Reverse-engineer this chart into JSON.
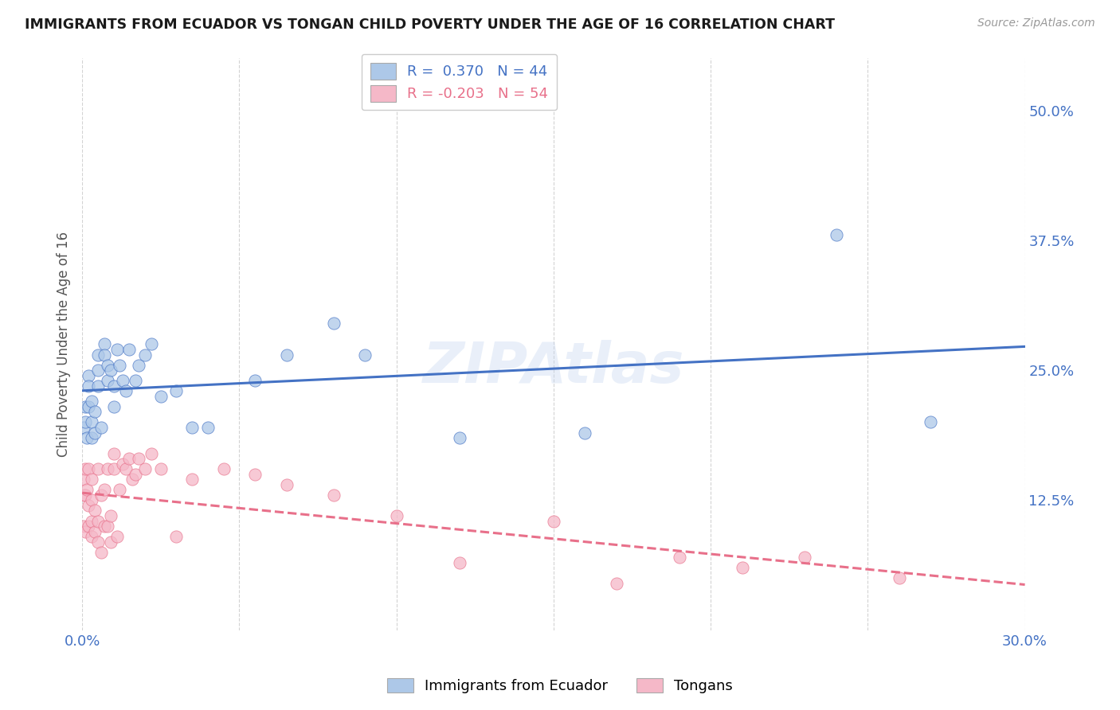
{
  "title": "IMMIGRANTS FROM ECUADOR VS TONGAN CHILD POVERTY UNDER THE AGE OF 16 CORRELATION CHART",
  "source": "Source: ZipAtlas.com",
  "ylabel": "Child Poverty Under the Age of 16",
  "xlim": [
    0.0,
    0.3
  ],
  "ylim": [
    0.0,
    0.55
  ],
  "xticks": [
    0.0,
    0.05,
    0.1,
    0.15,
    0.2,
    0.25,
    0.3
  ],
  "xtick_labels": [
    "0.0%",
    "",
    "",
    "",
    "",
    "",
    "30.0%"
  ],
  "ytick_vals_right": [
    0.5,
    0.375,
    0.25,
    0.125,
    0.0
  ],
  "ytick_labels_right": [
    "50.0%",
    "37.5%",
    "25.0%",
    "12.5%",
    ""
  ],
  "legend_label1": "Immigrants from Ecuador",
  "legend_label2": "Tongans",
  "R1": 0.37,
  "N1": 44,
  "R2": -0.203,
  "N2": 54,
  "color_ecuador": "#adc8e8",
  "color_tonga": "#f5b8c8",
  "color_line_ecuador": "#4472c4",
  "color_line_tonga": "#e8708a",
  "watermark": "ZIPAtlas",
  "background_color": "#ffffff",
  "grid_color": "#c8c8c8",
  "ecuador_x": [
    0.0005,
    0.001,
    0.001,
    0.0015,
    0.002,
    0.002,
    0.002,
    0.003,
    0.003,
    0.003,
    0.004,
    0.004,
    0.005,
    0.005,
    0.005,
    0.006,
    0.007,
    0.007,
    0.008,
    0.008,
    0.009,
    0.01,
    0.01,
    0.011,
    0.012,
    0.013,
    0.014,
    0.015,
    0.017,
    0.018,
    0.02,
    0.022,
    0.025,
    0.03,
    0.035,
    0.04,
    0.055,
    0.065,
    0.08,
    0.09,
    0.12,
    0.16,
    0.24,
    0.27
  ],
  "ecuador_y": [
    0.195,
    0.2,
    0.215,
    0.185,
    0.245,
    0.215,
    0.235,
    0.185,
    0.2,
    0.22,
    0.19,
    0.21,
    0.235,
    0.25,
    0.265,
    0.195,
    0.275,
    0.265,
    0.24,
    0.255,
    0.25,
    0.215,
    0.235,
    0.27,
    0.255,
    0.24,
    0.23,
    0.27,
    0.24,
    0.255,
    0.265,
    0.275,
    0.225,
    0.23,
    0.195,
    0.195,
    0.24,
    0.265,
    0.295,
    0.265,
    0.185,
    0.19,
    0.38,
    0.2
  ],
  "tonga_x": [
    0.0004,
    0.0005,
    0.0008,
    0.001,
    0.001,
    0.001,
    0.0015,
    0.002,
    0.002,
    0.002,
    0.003,
    0.003,
    0.003,
    0.003,
    0.004,
    0.004,
    0.005,
    0.005,
    0.005,
    0.006,
    0.006,
    0.007,
    0.007,
    0.008,
    0.008,
    0.009,
    0.009,
    0.01,
    0.01,
    0.011,
    0.012,
    0.013,
    0.014,
    0.015,
    0.016,
    0.017,
    0.018,
    0.02,
    0.022,
    0.025,
    0.03,
    0.035,
    0.045,
    0.055,
    0.065,
    0.08,
    0.1,
    0.12,
    0.15,
    0.17,
    0.19,
    0.21,
    0.23,
    0.26
  ],
  "tonga_y": [
    0.145,
    0.1,
    0.13,
    0.095,
    0.13,
    0.155,
    0.135,
    0.1,
    0.12,
    0.155,
    0.09,
    0.105,
    0.125,
    0.145,
    0.095,
    0.115,
    0.085,
    0.105,
    0.155,
    0.075,
    0.13,
    0.1,
    0.135,
    0.1,
    0.155,
    0.085,
    0.11,
    0.155,
    0.17,
    0.09,
    0.135,
    0.16,
    0.155,
    0.165,
    0.145,
    0.15,
    0.165,
    0.155,
    0.17,
    0.155,
    0.09,
    0.145,
    0.155,
    0.15,
    0.14,
    0.13,
    0.11,
    0.065,
    0.105,
    0.045,
    0.07,
    0.06,
    0.07,
    0.05
  ]
}
